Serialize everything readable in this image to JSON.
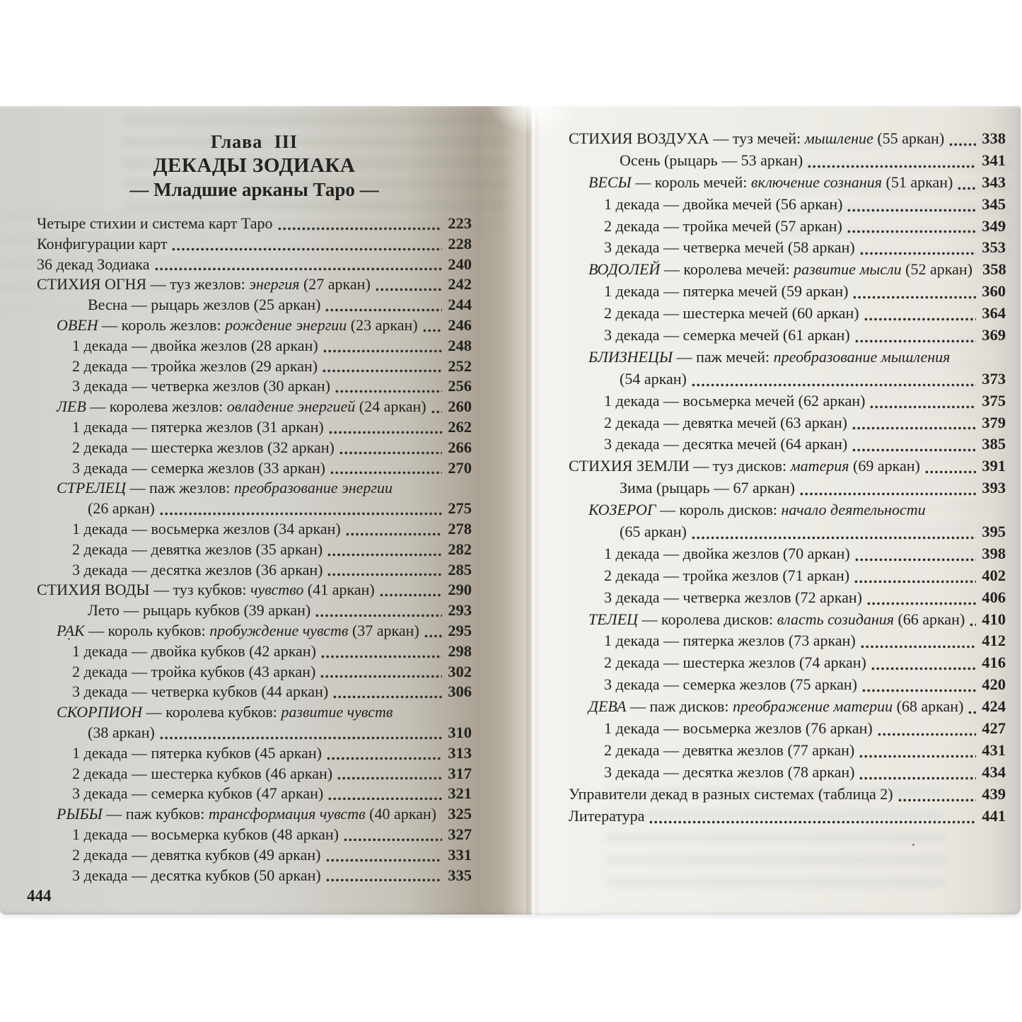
{
  "colors": {
    "background": "#ffffff",
    "ink": "#23221e",
    "paper_left": "#d4d5d1",
    "paper_right": "#edebe5"
  },
  "left_page": {
    "heading": {
      "chapter": "Глава III",
      "title": "ДЕКАДЫ ЗОДИАКА",
      "subtitle": "— Младшие арканы Таро —"
    },
    "page_number": "444",
    "entries": [
      {
        "indent": 0,
        "parts": [
          [
            "Четыре стихии и система карт Таро",
            "n"
          ]
        ],
        "page": "223"
      },
      {
        "indent": 0,
        "parts": [
          [
            "Конфигурации карт",
            "n"
          ]
        ],
        "page": "228"
      },
      {
        "indent": 0,
        "parts": [
          [
            "36 декад Зодиака",
            "n"
          ]
        ],
        "page": "240"
      },
      {
        "indent": 0,
        "parts": [
          [
            "СТИХИЯ ОГНЯ — туз жезлов: ",
            "n"
          ],
          [
            "энергия",
            "i"
          ],
          [
            " (27 аркан)",
            "n"
          ]
        ],
        "page": "242"
      },
      {
        "indent": 3,
        "parts": [
          [
            "Весна — рыцарь жезлов (25 аркан)",
            "n"
          ]
        ],
        "page": "244"
      },
      {
        "indent": 1,
        "parts": [
          [
            "ОВЕН",
            "i"
          ],
          [
            " — король жезлов: ",
            "n"
          ],
          [
            "рождение энергии",
            "i"
          ],
          [
            " (23 аркан)",
            "n"
          ]
        ],
        "page": "246"
      },
      {
        "indent": 2,
        "parts": [
          [
            "1 декада — двойка жезлов (28 аркан)",
            "n"
          ]
        ],
        "page": "248"
      },
      {
        "indent": 2,
        "parts": [
          [
            "2 декада — тройка жезлов (29 аркан)",
            "n"
          ]
        ],
        "page": "252"
      },
      {
        "indent": 2,
        "parts": [
          [
            "3 декада — четверка жезлов (30 аркан)",
            "n"
          ]
        ],
        "page": "256"
      },
      {
        "indent": 1,
        "parts": [
          [
            "ЛЕВ",
            "i"
          ],
          [
            " — королева жезлов: ",
            "n"
          ],
          [
            "овладение энергией",
            "i"
          ],
          [
            " (24 аркан)",
            "n"
          ]
        ],
        "page": "260"
      },
      {
        "indent": 2,
        "parts": [
          [
            "1 декада — пятерка жезлов (31 аркан)",
            "n"
          ]
        ],
        "page": "262"
      },
      {
        "indent": 2,
        "parts": [
          [
            "2 декада — шестерка жезлов (32 аркан)",
            "n"
          ]
        ],
        "page": "266"
      },
      {
        "indent": 2,
        "parts": [
          [
            "3 декада — семерка жезлов (33 аркан)",
            "n"
          ]
        ],
        "page": "270"
      },
      {
        "indent": 1,
        "parts": [
          [
            "СТРЕЛЕЦ",
            "i"
          ],
          [
            " — паж жезлов: ",
            "n"
          ],
          [
            "преобразование энергии",
            "i"
          ]
        ],
        "page": null
      },
      {
        "indent": 3,
        "parts": [
          [
            "(26 аркан)",
            "n"
          ]
        ],
        "page": "275"
      },
      {
        "indent": 2,
        "parts": [
          [
            "1 декада — восьмерка жезлов (34 аркан)",
            "n"
          ]
        ],
        "page": "278"
      },
      {
        "indent": 2,
        "parts": [
          [
            "2 декада — девятка жезлов (35 аркан)",
            "n"
          ]
        ],
        "page": "282"
      },
      {
        "indent": 2,
        "parts": [
          [
            "3 декада — десятка жезлов (36 аркан)",
            "n"
          ]
        ],
        "page": "285"
      },
      {
        "indent": 0,
        "parts": [
          [
            "СТИХИЯ ВОДЫ — туз кубков: ",
            "n"
          ],
          [
            "чувство",
            "i"
          ],
          [
            " (41 аркан)",
            "n"
          ]
        ],
        "page": "290"
      },
      {
        "indent": 3,
        "parts": [
          [
            "Лето — рыцарь кубков (39 аркан)",
            "n"
          ]
        ],
        "page": "293"
      },
      {
        "indent": 1,
        "parts": [
          [
            "РАК",
            "i"
          ],
          [
            " — король кубков: ",
            "n"
          ],
          [
            "пробуждение чувств",
            "i"
          ],
          [
            " (37 аркан)",
            "n"
          ]
        ],
        "page": "295"
      },
      {
        "indent": 2,
        "parts": [
          [
            "1 декада — двойка кубков (42 аркан)",
            "n"
          ]
        ],
        "page": "298"
      },
      {
        "indent": 2,
        "parts": [
          [
            "2 декада — тройка кубков (43 аркан)",
            "n"
          ]
        ],
        "page": "302"
      },
      {
        "indent": 2,
        "parts": [
          [
            "3 декада — четверка кубков (44 аркан)",
            "n"
          ]
        ],
        "page": "306"
      },
      {
        "indent": 1,
        "parts": [
          [
            "СКОРПИОН",
            "i"
          ],
          [
            " — королева кубков: ",
            "n"
          ],
          [
            "развитие чувств",
            "i"
          ]
        ],
        "page": null
      },
      {
        "indent": 3,
        "parts": [
          [
            "(38 аркан)",
            "n"
          ]
        ],
        "page": "310"
      },
      {
        "indent": 2,
        "parts": [
          [
            "1 декада — пятерка кубков (45 аркан)",
            "n"
          ]
        ],
        "page": "313"
      },
      {
        "indent": 2,
        "parts": [
          [
            "2 декада — шестерка кубков (46 аркан)",
            "n"
          ]
        ],
        "page": "317"
      },
      {
        "indent": 2,
        "parts": [
          [
            "3 декада — семерка кубков (47 аркан)",
            "n"
          ]
        ],
        "page": "321"
      },
      {
        "indent": 1,
        "parts": [
          [
            "РЫБЫ",
            "i"
          ],
          [
            " — паж кубков: ",
            "n"
          ],
          [
            "трансформация чувств",
            "i"
          ],
          [
            " (40 аркан)",
            "n"
          ]
        ],
        "page": "325"
      },
      {
        "indent": 2,
        "parts": [
          [
            "1 декада — восьмерка кубков (48 аркан)",
            "n"
          ]
        ],
        "page": "327"
      },
      {
        "indent": 2,
        "parts": [
          [
            "2 декада — девятка кубков (49 аркан)",
            "n"
          ]
        ],
        "page": "331"
      },
      {
        "indent": 2,
        "parts": [
          [
            "3 декада — десятка кубков (50 аркан)",
            "n"
          ]
        ],
        "page": "335"
      }
    ]
  },
  "right_page": {
    "entries": [
      {
        "indent": 0,
        "parts": [
          [
            "СТИХИЯ ВОЗДУХА — туз мечей: ",
            "n"
          ],
          [
            "мышление",
            "i"
          ],
          [
            " (55 аркан)",
            "n"
          ]
        ],
        "page": "338"
      },
      {
        "indent": 3,
        "parts": [
          [
            "Осень (рыцарь — 53 аркан)",
            "n"
          ]
        ],
        "page": "341"
      },
      {
        "indent": 1,
        "parts": [
          [
            "ВЕСЫ",
            "i"
          ],
          [
            " — король мечей: ",
            "n"
          ],
          [
            "включение сознания",
            "i"
          ],
          [
            " (51 аркан)",
            "n"
          ]
        ],
        "page": "343"
      },
      {
        "indent": 2,
        "parts": [
          [
            "1 декада — двойка мечей (56 аркан)",
            "n"
          ]
        ],
        "page": "345"
      },
      {
        "indent": 2,
        "parts": [
          [
            "2 декада — тройка мечей (57 аркан)",
            "n"
          ]
        ],
        "page": "349"
      },
      {
        "indent": 2,
        "parts": [
          [
            "3 декада — четверка мечей (58 аркан)",
            "n"
          ]
        ],
        "page": "353"
      },
      {
        "indent": 1,
        "parts": [
          [
            "ВОДОЛЕЙ",
            "i"
          ],
          [
            " — королева мечей: ",
            "n"
          ],
          [
            "развитие мысли",
            "i"
          ],
          [
            " (52 аркан)",
            "n"
          ]
        ],
        "page": "358"
      },
      {
        "indent": 2,
        "parts": [
          [
            "1 декада — пятерка мечей (59 аркан)",
            "n"
          ]
        ],
        "page": "360"
      },
      {
        "indent": 2,
        "parts": [
          [
            "2 декада — шестерка мечей (60 аркан)",
            "n"
          ]
        ],
        "page": "364"
      },
      {
        "indent": 2,
        "parts": [
          [
            "3 декада — семерка мечей (61 аркан)",
            "n"
          ]
        ],
        "page": "369"
      },
      {
        "indent": 1,
        "parts": [
          [
            "БЛИЗНЕЦЫ",
            "i"
          ],
          [
            " — паж мечей: ",
            "n"
          ],
          [
            "преобразование мышления",
            "i"
          ]
        ],
        "page": null
      },
      {
        "indent": 3,
        "parts": [
          [
            "(54 аркан)",
            "n"
          ]
        ],
        "page": "373"
      },
      {
        "indent": 2,
        "parts": [
          [
            "1 декада — восьмерка мечей (62 аркан)",
            "n"
          ]
        ],
        "page": "375"
      },
      {
        "indent": 2,
        "parts": [
          [
            "2 декада — девятка мечей (63 аркан)",
            "n"
          ]
        ],
        "page": "379"
      },
      {
        "indent": 2,
        "parts": [
          [
            "3 декада — десятка мечей (64 аркан)",
            "n"
          ]
        ],
        "page": "385"
      },
      {
        "indent": 0,
        "parts": [
          [
            "СТИХИЯ ЗЕМЛИ — туз дисков: ",
            "n"
          ],
          [
            "материя",
            "i"
          ],
          [
            " (69 аркан)",
            "n"
          ]
        ],
        "page": "391"
      },
      {
        "indent": 3,
        "parts": [
          [
            "Зима (рыцарь — 67 аркан)",
            "n"
          ]
        ],
        "page": "393"
      },
      {
        "indent": 1,
        "parts": [
          [
            "КОЗЕРОГ",
            "i"
          ],
          [
            " — король дисков: ",
            "n"
          ],
          [
            "начало деятельности",
            "i"
          ]
        ],
        "page": null
      },
      {
        "indent": 3,
        "parts": [
          [
            "(65 аркан)",
            "n"
          ]
        ],
        "page": "395"
      },
      {
        "indent": 2,
        "parts": [
          [
            "1 декада — двойка жезлов (70 аркан)",
            "n"
          ]
        ],
        "page": "398"
      },
      {
        "indent": 2,
        "parts": [
          [
            "2 декада — тройка жезлов (71 аркан)",
            "n"
          ]
        ],
        "page": "402"
      },
      {
        "indent": 2,
        "parts": [
          [
            "3 декада — четверка жезлов (72 аркан)",
            "n"
          ]
        ],
        "page": "406"
      },
      {
        "indent": 1,
        "parts": [
          [
            "ТЕЛЕЦ",
            "i"
          ],
          [
            " — королева дисков: ",
            "n"
          ],
          [
            "власть созидания",
            "i"
          ],
          [
            " (66 аркан)",
            "n"
          ]
        ],
        "page": "410"
      },
      {
        "indent": 2,
        "parts": [
          [
            "1 декада — пятерка жезлов (73 аркан)",
            "n"
          ]
        ],
        "page": "412"
      },
      {
        "indent": 2,
        "parts": [
          [
            "2 декада — шестерка жезлов (74 аркан)",
            "n"
          ]
        ],
        "page": "416"
      },
      {
        "indent": 2,
        "parts": [
          [
            "3 декада — семерка жезлов (75 аркан)",
            "n"
          ]
        ],
        "page": "420"
      },
      {
        "indent": 1,
        "parts": [
          [
            "ДЕВА",
            "i"
          ],
          [
            " — паж дисков: ",
            "n"
          ],
          [
            "преображение материи",
            "i"
          ],
          [
            " (68 аркан)",
            "n"
          ]
        ],
        "page": "424"
      },
      {
        "indent": 2,
        "parts": [
          [
            "1 декада — восьмерка жезлов (76 аркан)",
            "n"
          ]
        ],
        "page": "427"
      },
      {
        "indent": 2,
        "parts": [
          [
            "2 декада — девятка жезлов (77 аркан)",
            "n"
          ]
        ],
        "page": "431"
      },
      {
        "indent": 2,
        "parts": [
          [
            "3 декада — десятка жезлов (78 аркан)",
            "n"
          ]
        ],
        "page": "434"
      },
      {
        "indent": 0,
        "parts": [
          [
            "Управители декад в разных системах (таблица 2)",
            "n"
          ]
        ],
        "page": "439"
      },
      {
        "indent": 0,
        "parts": [
          [
            "Литература",
            "n"
          ]
        ],
        "page": "441"
      }
    ]
  }
}
